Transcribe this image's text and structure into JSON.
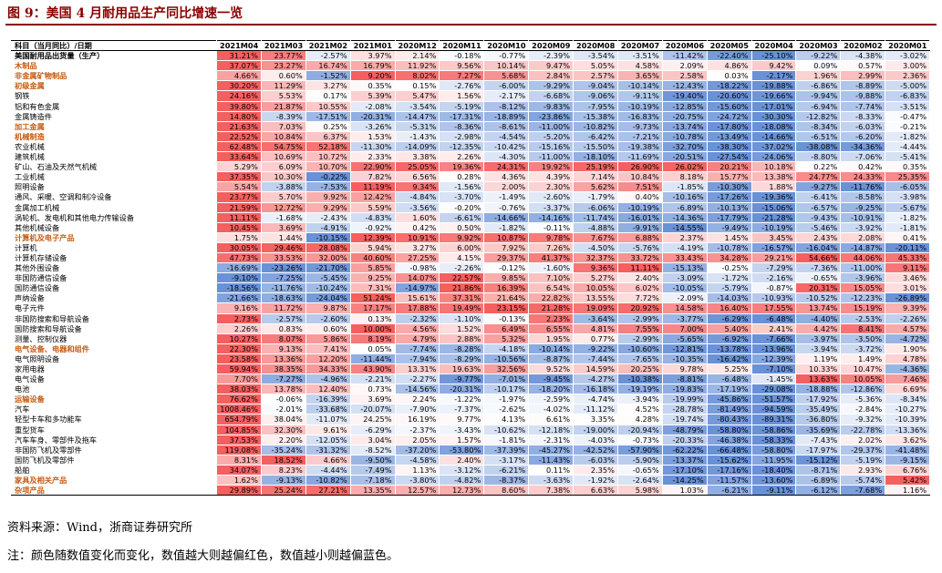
{
  "title": "图 9：美国 4 月耐用品生产同比增速一览",
  "table": {
    "header": [
      "科目（当月同比）/日期",
      "2021M04",
      "2021M03",
      "2021M02",
      "2021M01",
      "2020M12",
      "2020M11",
      "2020M10",
      "2020M09",
      "2020M08",
      "2020M07",
      "2020M06",
      "2020M05",
      "2020M04",
      "2020M03",
      "2020M02",
      "2020M01"
    ],
    "rows": [
      [
        "美国耐用品出货量（生产）",
        "31.21%",
        "23.77%",
        "-2.57%",
        "3.97%",
        "2.14%",
        "-0.18%",
        "-0.77%",
        "-2.39%",
        "-3.54%",
        "-3.51%",
        "-11.42%",
        "-22.40%",
        "-25.10%",
        "-9.22%",
        "-4.38%",
        "-3.02%"
      ],
      [
        "木制品",
        "37.07%",
        "23.27%",
        "16.74%",
        "16.79%",
        "11.92%",
        "9.56%",
        "10.14%",
        "9.47%",
        "5.05%",
        "4.58%",
        "2.09%",
        "4.86%",
        "9.42%",
        "0.09%",
        "0.57%",
        "3.00%"
      ],
      [
        "非金属矿物制品",
        "4.66%",
        "0.60%",
        "-1.52%",
        "9.20%",
        "8.02%",
        "7.27%",
        "5.68%",
        "2.84%",
        "2.57%",
        "3.65%",
        "2.58%",
        "0.03%",
        "-2.17%",
        "1.96%",
        "2.99%",
        "2.36%"
      ],
      [
        "初级金属",
        "30.20%",
        "11.29%",
        "3.27%",
        "0.35%",
        "0.15%",
        "-2.76%",
        "-6.00%",
        "-9.29%",
        "-9.04%",
        "-10.14%",
        "-12.43%",
        "-18.22%",
        "-19.88%",
        "-6.86%",
        "-8.89%",
        "-5.00%"
      ],
      [
        "钢铁",
        "24.16%",
        "5.53%",
        "0.17%",
        "5.39%",
        "5.47%",
        "1.56%",
        "-2.17%",
        "-6.68%",
        "-9.06%",
        "-9.11%",
        "-19.40%",
        "-20.60%",
        "-19.66%",
        "-9.94%",
        "-9.88%",
        "-6.83%"
      ],
      [
        "铝和有色金属",
        "39.80%",
        "21.87%",
        "10.55%",
        "-2.08%",
        "-3.54%",
        "-5.19%",
        "-8.12%",
        "-9.83%",
        "-7.95%",
        "-10.19%",
        "-12.85%",
        "-15.60%",
        "-17.01%",
        "-6.94%",
        "-7.74%",
        "-3.51%"
      ],
      [
        "金属铸造件",
        "14.80%",
        "-8.39%",
        "-17.51%",
        "-20.31%",
        "-14.47%",
        "-17.31%",
        "-18.89%",
        "-23.86%",
        "-15.38%",
        "-16.83%",
        "-20.75%",
        "-24.72%",
        "-30.30%",
        "-12.82%",
        "-8.33%",
        "-0.47%"
      ],
      [
        "加工金属",
        "21.63%",
        "7.03%",
        "0.25%",
        "-3.26%",
        "-5.31%",
        "-8.36%",
        "-8.61%",
        "-11.00%",
        "-10.82%",
        "-9.73%",
        "-13.74%",
        "-17.80%",
        "-18.08%",
        "-8.34%",
        "-6.03%",
        "-0.21%"
      ],
      [
        "机械制造",
        "22.52%",
        "10.84%",
        "6.37%",
        "1.53%",
        "-1.43%",
        "-2.98%",
        "-4.54%",
        "-5.20%",
        "-6.42%",
        "-7.21%",
        "-10.78%",
        "-13.49%",
        "-14.66%",
        "-6.51%",
        "-6.20%",
        "-1.82%"
      ],
      [
        "农业机械",
        "62.48%",
        "54.75%",
        "52.18%",
        "-11.30%",
        "-14.09%",
        "-12.35%",
        "-10.42%",
        "-15.16%",
        "-15.50%",
        "-19.38%",
        "-32.70%",
        "-38.30%",
        "-37.02%",
        "-38.08%",
        "-34.36%",
        "-4.44%"
      ],
      [
        "建筑机械",
        "33.64%",
        "10.69%",
        "10.72%",
        "2.33%",
        "3.38%",
        "2.26%",
        "-4.30%",
        "-11.00%",
        "-18.10%",
        "-11.69%",
        "-20.51%",
        "-27.54%",
        "-24.06%",
        "-8.80%",
        "-7.06%",
        "-5.41%"
      ],
      [
        "矿山、石油及天然气机械",
        "5.29%",
        "6.09%",
        "10.70%",
        "22.90%",
        "25.05%",
        "19.36%",
        "24.31%",
        "19.92%",
        "25.19%",
        "26.90%",
        "26.02%",
        "20.21%",
        "10.18%",
        "0.22%",
        "0.42%",
        "0.35%"
      ],
      [
        "工业机械",
        "37.35%",
        "10.30%",
        "-0.22%",
        "7.82%",
        "6.56%",
        "0.28%",
        "4.36%",
        "4.39%",
        "7.14%",
        "10.84%",
        "8.18%",
        "15.77%",
        "13.38%",
        "24.77%",
        "24.33%",
        "25.35%"
      ],
      [
        "照明设备",
        "5.54%",
        "-3.88%",
        "-7.53%",
        "11.19%",
        "9.34%",
        "-1.56%",
        "2.00%",
        "2.30%",
        "5.62%",
        "7.51%",
        "-1.85%",
        "-10.30%",
        "1.88%",
        "-9.27%",
        "-11.76%",
        "-6.05%"
      ],
      [
        "通风、采暖、空调和制冷设备",
        "23.77%",
        "5.70%",
        "9.92%",
        "12.42%",
        "-4.84%",
        "-3.70%",
        "-1.49%",
        "-2.60%",
        "-1.79%",
        "0.40%",
        "-10.16%",
        "-17.26%",
        "-19.36%",
        "-6.41%",
        "-8.58%",
        "-3.98%"
      ],
      [
        "金属加工机械",
        "21.59%",
        "12.72%",
        "9.29%",
        "5.59%",
        "-3.56%",
        "-0.20%",
        "-0.76%",
        "-3.37%",
        "-6.06%",
        "-10.19%",
        "-6.89%",
        "-10.13%",
        "-15.06%",
        "-6.57%",
        "-9.25%",
        "-5.67%"
      ],
      [
        "涡轮机、发电机和其他电力传输设备",
        "11.11%",
        "-1.68%",
        "-2.43%",
        "-4.83%",
        "1.60%",
        "-6.61%",
        "-14.66%",
        "-14.16%",
        "-11.74%",
        "-16.01%",
        "-14.36%",
        "-17.79%",
        "-21.28%",
        "-9.43%",
        "-10.91%",
        "-1.82%"
      ],
      [
        "其他机械设备",
        "10.45%",
        "3.69%",
        "-4.91%",
        "-0.92%",
        "0.42%",
        "0.50%",
        "-1.82%",
        "-0.11%",
        "-4.88%",
        "-9.91%",
        "-14.55%",
        "-9.49%",
        "-10.19%",
        "-5.46%",
        "-3.92%",
        "-1.81%"
      ],
      [
        "计算机及电子产品",
        "1.75%",
        "1.44%",
        "-10.15%",
        "12.39%",
        "10.91%",
        "9.92%",
        "10.87%",
        "9.78%",
        "7.67%",
        "6.88%",
        "2.37%",
        "1.45%",
        "3.45%",
        "2.43%",
        "2.08%",
        "0.41%"
      ],
      [
        "计算机",
        "30.05%",
        "29.46%",
        "28.08%",
        "5.94%",
        "3.27%",
        "6.00%",
        "7.92%",
        "7.26%",
        "-4.50%",
        "-5.76%",
        "-4.19%",
        "-10.78%",
        "-16.57%",
        "-16.04%",
        "-14.87%",
        "-20.11%"
      ],
      [
        "计算机存储设备",
        "47.73%",
        "33.53%",
        "32.00%",
        "40.60%",
        "27.25%",
        "4.15%",
        "29.37%",
        "41.37%",
        "32.37%",
        "33.72%",
        "33.43%",
        "34.28%",
        "29.21%",
        "54.66%",
        "44.06%",
        "45.33%"
      ],
      [
        "其他外围设备",
        "-16.69%",
        "-23.26%",
        "-21.70%",
        "5.85%",
        "-0.98%",
        "-2.26%",
        "-0.12%",
        "-1.60%",
        "9.36%",
        "11.11%",
        "-15.13%",
        "-0.25%",
        "-7.29%",
        "-7.36%",
        "-11.00%",
        "9.11%"
      ],
      [
        "非国防通信设备",
        "-9.10%",
        "-7.25%",
        "-5.45%",
        "9.25%",
        "14.07%",
        "22.57%",
        "9.85%",
        "7.10%",
        "5.27%",
        "2.40%",
        "-3.09%",
        "-1.72%",
        "-2.16%",
        "-0.65%",
        "-3.96%",
        "3.46%"
      ],
      [
        "国防通信设备",
        "-18.56%",
        "-11.76%",
        "-10.24%",
        "7.31%",
        "-14.97%",
        "21.86%",
        "16.39%",
        "6.54%",
        "10.05%",
        "6.02%",
        "-10.05%",
        "-5.79%",
        "-0.87%",
        "20.31%",
        "15.05%",
        "3.01%"
      ],
      [
        "声纳设备",
        "-21.66%",
        "-18.63%",
        "-24.04%",
        "51.24%",
        "15.61%",
        "37.31%",
        "21.64%",
        "22.82%",
        "13.55%",
        "7.72%",
        "-2.09%",
        "-14.03%",
        "-10.93%",
        "-10.52%",
        "-12.23%",
        "-26.89%"
      ],
      [
        "电子元件",
        "9.16%",
        "11.72%",
        "9.87%",
        "17.17%",
        "17.88%",
        "19.49%",
        "23.15%",
        "21.28%",
        "19.09%",
        "20.92%",
        "14.58%",
        "16.40%",
        "17.55%",
        "13.74%",
        "15.19%",
        "9.39%"
      ],
      [
        "非国防搜索和导航设备",
        "2.73%",
        "-2.57%",
        "-2.60%",
        "0.13%",
        "-2.32%",
        "-1.10%",
        "-0.13%",
        "2.23%",
        "-3.64%",
        "-2.99%",
        "-3.77%",
        "-6.29%",
        "-6.48%",
        "-4.40%",
        "-2.53%",
        "-2.26%"
      ],
      [
        "国防搜索和导航设备",
        "2.26%",
        "0.83%",
        "0.60%",
        "10.00%",
        "4.56%",
        "1.52%",
        "6.49%",
        "6.55%",
        "4.81%",
        "7.55%",
        "7.00%",
        "5.40%",
        "2.41%",
        "4.42%",
        "8.41%",
        "4.57%"
      ],
      [
        "测量、控制仪器",
        "10.27%",
        "8.07%",
        "5.86%",
        "8.19%",
        "4.79%",
        "2.88%",
        "5.32%",
        "1.95%",
        "0.77%",
        "-2.99%",
        "-5.65%",
        "-6.92%",
        "-7.66%",
        "-3.97%",
        "-3.50%",
        "-4.72%"
      ],
      [
        "电气设备、电器和组件",
        "22.30%",
        "9.13%",
        "7.41%",
        "0.05%",
        "-7.74%",
        "-8.28%",
        "-4.18%",
        "-10.14%",
        "-9.22%",
        "-10.60%",
        "-12.81%",
        "-13.78%",
        "-13.96%",
        "-3.94%",
        "-3.72%",
        "1.90%"
      ],
      [
        "电气照明设备",
        "23.58%",
        "13.36%",
        "12.20%",
        "-11.44%",
        "-7.94%",
        "-8.29%",
        "-10.56%",
        "-8.87%",
        "-7.44%",
        "-7.65%",
        "-10.35%",
        "-16.42%",
        "-12.39%",
        "1.19%",
        "1.49%",
        "4.78%"
      ],
      [
        "家用电器",
        "59.94%",
        "38.35%",
        "34.33%",
        "43.90%",
        "13.31%",
        "19.63%",
        "32.56%",
        "9.52%",
        "14.59%",
        "20.25%",
        "9.78%",
        "5.25%",
        "-7.10%",
        "10.33%",
        "10.47%",
        "-4.36%"
      ],
      [
        "电气设备",
        "7.70%",
        "-7.27%",
        "-4.96%",
        "-2.21%",
        "-2.27%",
        "-9.77%",
        "-7.01%",
        "-9.45%",
        "-4.27%",
        "-10.38%",
        "-8.81%",
        "-6.48%",
        "-1.45%",
        "13.63%",
        "10.05%",
        "7.46%"
      ],
      [
        "电池",
        "38.03%",
        "13.78%",
        "12.40%",
        "0.73%",
        "-14.56%",
        "-20.31%",
        "-10.17%",
        "-18.20%",
        "-16.18%",
        "-19.19%",
        "-19.83%",
        "-17.19%",
        "-29.08%",
        "-18.88%",
        "-12.86%",
        "6.69%"
      ],
      [
        "运输设备",
        "76.62%",
        "-0.06%",
        "-16.39%",
        "3.69%",
        "2.24%",
        "-1.22%",
        "-1.97%",
        "-2.59%",
        "-4.74%",
        "-3.94%",
        "-19.99%",
        "-45.86%",
        "-51.57%",
        "-17.92%",
        "-5.36%",
        "-8.34%"
      ],
      [
        "汽车",
        "1008.46%",
        "-2.01%",
        "-33.68%",
        "-20.07%",
        "-7.90%",
        "-7.37%",
        "-2.62%",
        "-4.02%",
        "-11.12%",
        "4.52%",
        "-28.78%",
        "-81.49%",
        "-94.59%",
        "-35.49%",
        "-2.84%",
        "-10.27%"
      ],
      [
        "轻型卡车和多功能车",
        "654.79%",
        "38.04%",
        "-11.07%",
        "24.25%",
        "16.19%",
        "9.77%",
        "4.13%",
        "6.61%",
        "3.35%",
        "4.28%",
        "-19.74%",
        "-80.43%",
        "-89.31%",
        "-36.80%",
        "-9.32%",
        "-10.39%"
      ],
      [
        "重型货车",
        "104.85%",
        "32.30%",
        "9.61%",
        "-6.29%",
        "-2.37%",
        "-3.43%",
        "-10.62%",
        "-12.18%",
        "-19.00%",
        "-20.94%",
        "-48.79%",
        "-58.80%",
        "-58.86%",
        "-35.69%",
        "-22.78%",
        "-13.36%"
      ],
      [
        "汽车车身、零部件及拖车",
        "37.53%",
        "2.20%",
        "-12.05%",
        "3.04%",
        "2.05%",
        "1.57%",
        "-1.81%",
        "-2.31%",
        "-4.03%",
        "-0.73%",
        "-20.33%",
        "-46.38%",
        "-58.33%",
        "-7.43%",
        "2.02%",
        "3.62%"
      ],
      [
        "非国防飞机及零部件",
        "119.08%",
        "-35.24%",
        "-31.32%",
        "-8.52%",
        "-37.20%",
        "-53.80%",
        "-37.39%",
        "-45.27%",
        "-42.52%",
        "-57.90%",
        "-62.22%",
        "-66.48%",
        "-58.80%",
        "-17.97%",
        "-29.37%",
        "-41.48%"
      ],
      [
        "国防飞机及零部件",
        "8.31%",
        "18.52%",
        "4.66%",
        "-9.50%",
        "-4.58%",
        "2.40%",
        "-3.17%",
        "-11.43%",
        "-6.03%",
        "-5.90%",
        "-13.37%",
        "-15.62%",
        "-11.95%",
        "-15.12%",
        "-5.19%",
        "-9.15%"
      ],
      [
        "船舶",
        "34.07%",
        "8.23%",
        "-4.44%",
        "-7.49%",
        "1.13%",
        "-3.12%",
        "-6.21%",
        "0.11%",
        "2.35%",
        "-0.65%",
        "-17.10%",
        "-17.16%",
        "-18.40%",
        "-8.71%",
        "2.93%",
        "6.76%"
      ],
      [
        "家具及相关产品",
        "1.62%",
        "-9.13%",
        "-10.82%",
        "-7.18%",
        "-3.80%",
        "-4.82%",
        "-8.37%",
        "-3.63%",
        "-1.92%",
        "-2.64%",
        "-14.25%",
        "-11.57%",
        "-13.60%",
        "-6.89%",
        "-5.74%",
        "5.42%"
      ],
      [
        "杂项产品",
        "29.89%",
        "25.24%",
        "27.21%",
        "13.35%",
        "12.57%",
        "12.73%",
        "8.60%",
        "7.38%",
        "6.63%",
        "5.98%",
        "1.03%",
        "-6.21%",
        "-9.11%",
        "-6.12%",
        "-7.68%",
        "1.16%"
      ]
    ]
  },
  "source": "资料来源：Wind，浙商证券研究所",
  "note": "注：颜色随数值变化而变化，数值越大则越偏红色，数值越小则越偏蓝色。"
}
